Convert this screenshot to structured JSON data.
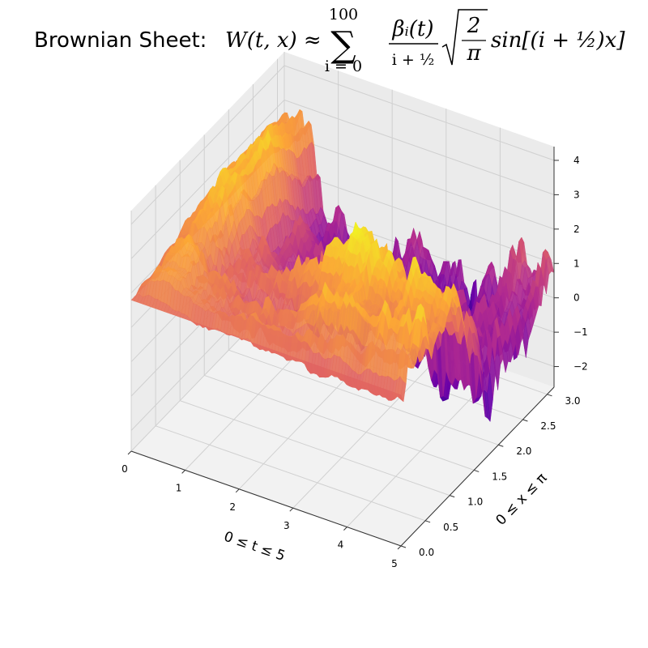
{
  "chart_data": {
    "type": "surface3d",
    "title_prefix": "Brownian Sheet:",
    "title_math": {
      "lhs": "W(t, x) ≈",
      "sum_upper": "100",
      "sum_lower": "i = 0",
      "numerator": "βᵢ(t)",
      "denominator": "i + ½",
      "sqrt_num": "2",
      "sqrt_den": "π",
      "tail": "sin[(i + ½)x]"
    },
    "xlabel": "0 ≤ t ≤ 5",
    "ylabel": "0 ≤ x ≤ π",
    "zlabel": "",
    "xlim": [
      0,
      5
    ],
    "ylim": [
      0,
      3.14159
    ],
    "zlim": [
      -2.6,
      4.4
    ],
    "xticks": [
      0,
      1,
      2,
      3,
      4,
      5
    ],
    "yticks": [
      "0.0",
      "0.5",
      "1.0",
      "1.5",
      "2.0",
      "2.5",
      "3.0"
    ],
    "zticks": [
      -2,
      -1,
      0,
      1,
      2,
      3,
      4
    ],
    "colormap": [
      "#0d0887",
      "#6a00a8",
      "#b12a90",
      "#e16462",
      "#fca636",
      "#f0f921"
    ],
    "grid": true,
    "n_terms": 100,
    "seed": 7,
    "pane_color": "#f2f2f2",
    "grid_color": "#d0d0d0"
  }
}
